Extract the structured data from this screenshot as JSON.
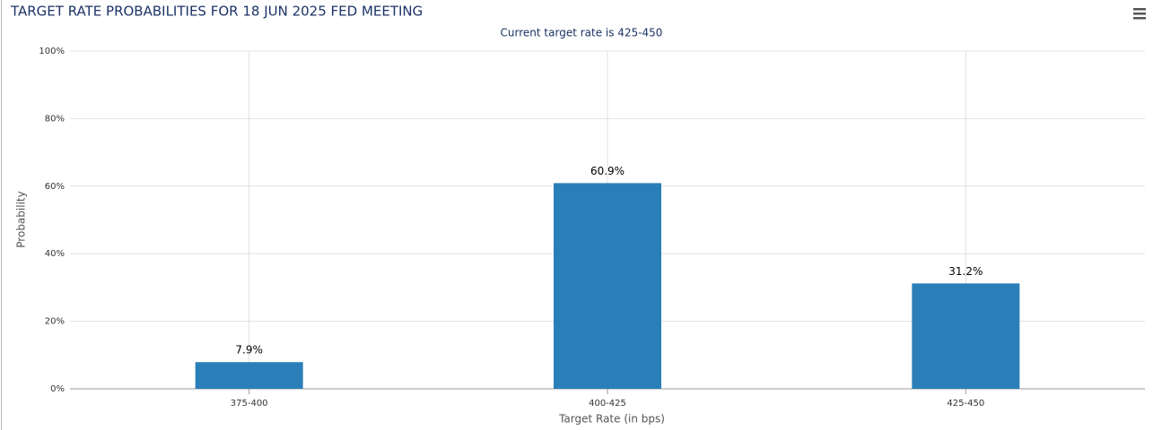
{
  "chart_data": {
    "type": "bar",
    "title": "TARGET RATE PROBABILITIES FOR 18 JUN 2025 FED MEETING",
    "subtitle": "Current target rate is 425-450",
    "x_label": "Target Rate (in bps)",
    "y_label": "Probability",
    "categories": [
      "375-400",
      "400-425",
      "425-450"
    ],
    "values": [
      7.9,
      60.9,
      31.2
    ],
    "value_labels": [
      "7.9%",
      "60.9%",
      "31.2%"
    ],
    "color": "#2b7fb8",
    "ylim": [
      0,
      100
    ],
    "yticks": [
      {
        "value": 0,
        "label": "0%"
      },
      {
        "value": 20,
        "label": "20%"
      },
      {
        "value": 40,
        "label": "40%"
      },
      {
        "value": 60,
        "label": "60%"
      },
      {
        "value": 80,
        "label": "80%"
      },
      {
        "value": 100,
        "label": "100%"
      }
    ],
    "grid": true
  }
}
